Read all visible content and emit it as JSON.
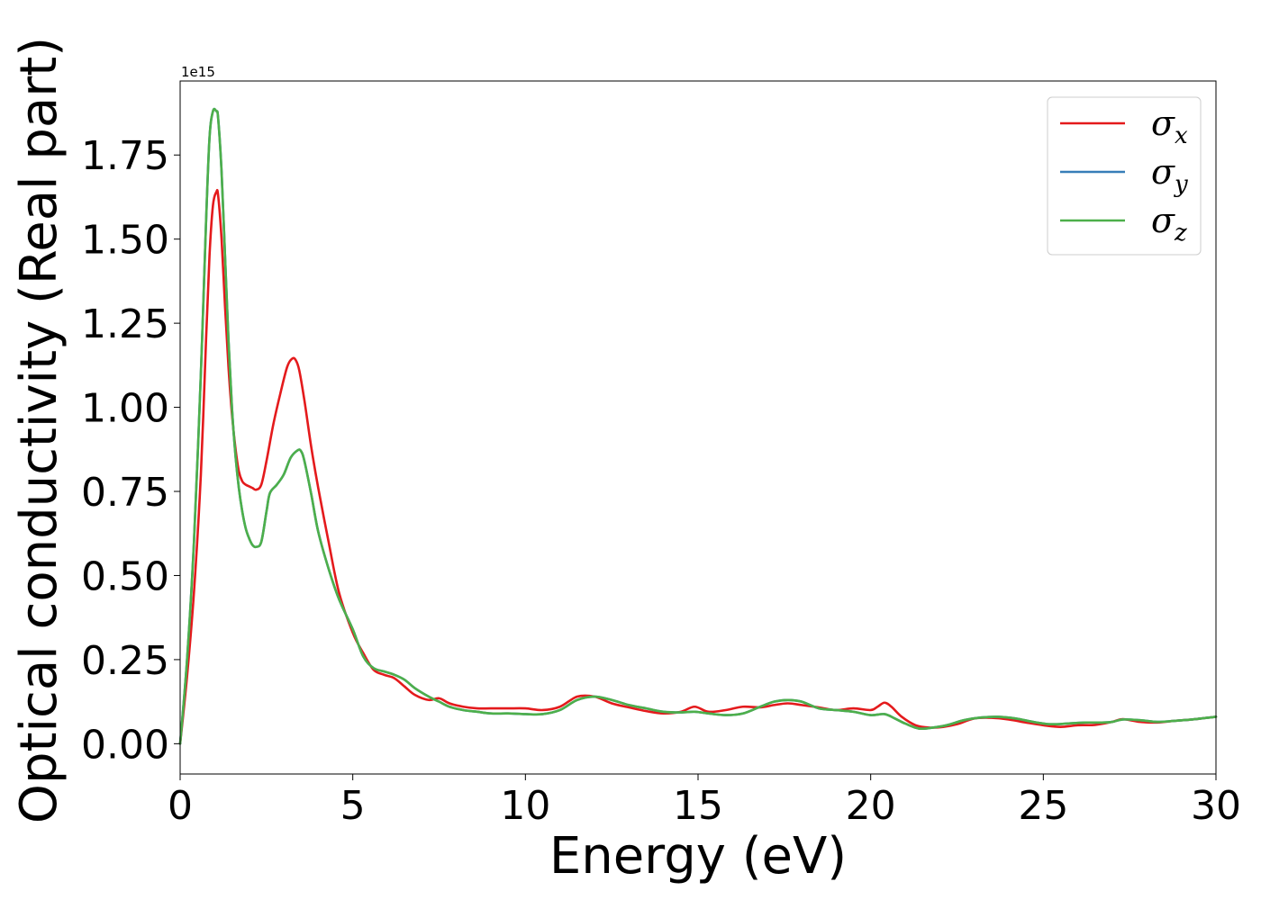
{
  "chart_data": {
    "type": "line",
    "title": "",
    "xlabel": "Energy (eV)",
    "ylabel": "Optical conductivity (Real part)",
    "y_offset_label": "1e15",
    "xlim": [
      0,
      30
    ],
    "ylim": [
      -0.09,
      1.97
    ],
    "xticks": [
      0,
      5,
      10,
      15,
      20,
      25,
      30
    ],
    "xtick_labels": [
      "0",
      "5",
      "10",
      "15",
      "20",
      "25",
      "30"
    ],
    "yticks": [
      0.0,
      0.25,
      0.5,
      0.75,
      1.0,
      1.25,
      1.5,
      1.75
    ],
    "ytick_labels": [
      "0.00",
      "0.25",
      "0.50",
      "0.75",
      "1.00",
      "1.25",
      "1.50",
      "1.75"
    ],
    "grid": false,
    "legend_position": "top-right",
    "series": [
      {
        "name": "σx",
        "legend_base": "σ",
        "legend_sub": "x",
        "color": "#e41a1c",
        "x": [
          0,
          0.2,
          0.4,
          0.6,
          0.75,
          0.85,
          0.95,
          1.05,
          1.1,
          1.2,
          1.3,
          1.4,
          1.5,
          1.6,
          1.7,
          1.8,
          1.9,
          2.0,
          2.1,
          2.2,
          2.35,
          2.5,
          2.7,
          2.9,
          3.1,
          3.25,
          3.35,
          3.45,
          3.6,
          3.8,
          4.0,
          4.3,
          4.6,
          5.0,
          5.3,
          5.6,
          5.9,
          6.2,
          6.5,
          6.8,
          7.2,
          7.5,
          7.8,
          8.2,
          8.6,
          9.0,
          9.5,
          10.0,
          10.5,
          11.0,
          11.5,
          12.0,
          12.5,
          13.0,
          13.5,
          14.0,
          14.5,
          14.9,
          15.3,
          15.8,
          16.3,
          16.8,
          17.2,
          17.6,
          18.0,
          18.5,
          19.0,
          19.5,
          20.0,
          20.2,
          20.4,
          20.6,
          20.9,
          21.3,
          21.7,
          22.1,
          22.5,
          23.0,
          23.5,
          24.0,
          24.5,
          25.0,
          25.5,
          26.0,
          26.5,
          27.0,
          27.3,
          27.8,
          28.3,
          28.8,
          29.3,
          30.0
        ],
        "y": [
          0.0,
          0.2,
          0.45,
          0.8,
          1.2,
          1.45,
          1.6,
          1.64,
          1.63,
          1.5,
          1.3,
          1.12,
          0.98,
          0.88,
          0.81,
          0.78,
          0.77,
          0.765,
          0.76,
          0.755,
          0.77,
          0.84,
          0.95,
          1.04,
          1.12,
          1.145,
          1.14,
          1.11,
          1.02,
          0.88,
          0.76,
          0.6,
          0.45,
          0.33,
          0.27,
          0.22,
          0.205,
          0.195,
          0.17,
          0.145,
          0.13,
          0.135,
          0.12,
          0.11,
          0.105,
          0.105,
          0.105,
          0.105,
          0.1,
          0.11,
          0.14,
          0.14,
          0.12,
          0.108,
          0.097,
          0.09,
          0.095,
          0.11,
          0.095,
          0.1,
          0.11,
          0.108,
          0.115,
          0.12,
          0.115,
          0.108,
          0.1,
          0.105,
          0.1,
          0.11,
          0.122,
          0.11,
          0.08,
          0.055,
          0.048,
          0.05,
          0.058,
          0.075,
          0.077,
          0.072,
          0.063,
          0.055,
          0.05,
          0.055,
          0.056,
          0.065,
          0.073,
          0.065,
          0.063,
          0.068,
          0.072,
          0.08
        ]
      },
      {
        "name": "σy",
        "legend_base": "σ",
        "legend_sub": "y",
        "color": "#377eb8",
        "x": [
          0,
          0.2,
          0.4,
          0.6,
          0.75,
          0.85,
          0.95,
          1.05,
          1.1,
          1.2,
          1.3,
          1.4,
          1.5,
          1.6,
          1.7,
          1.8,
          1.9,
          2.0,
          2.1,
          2.2,
          2.35,
          2.5,
          2.6,
          2.8,
          3.0,
          3.2,
          3.4,
          3.5,
          3.6,
          3.8,
          4.0,
          4.3,
          4.6,
          5.0,
          5.3,
          5.6,
          5.9,
          6.2,
          6.5,
          6.8,
          7.2,
          7.5,
          7.8,
          8.2,
          8.6,
          9.0,
          9.5,
          10.0,
          10.5,
          11.0,
          11.5,
          12.0,
          12.5,
          13.0,
          13.5,
          14.0,
          14.5,
          14.9,
          15.3,
          15.8,
          16.3,
          16.8,
          17.2,
          17.6,
          18.0,
          18.5,
          19.0,
          19.5,
          20.0,
          20.4,
          20.7,
          21.0,
          21.4,
          21.8,
          22.2,
          22.7,
          23.2,
          23.7,
          24.2,
          24.7,
          25.2,
          25.7,
          26.2,
          26.7,
          27.0,
          27.3,
          27.8,
          28.3,
          28.8,
          29.3,
          30.0
        ],
        "y": [
          0.0,
          0.25,
          0.6,
          1.1,
          1.55,
          1.8,
          1.88,
          1.88,
          1.86,
          1.7,
          1.45,
          1.2,
          1.0,
          0.86,
          0.76,
          0.69,
          0.64,
          0.61,
          0.59,
          0.585,
          0.6,
          0.69,
          0.745,
          0.77,
          0.8,
          0.85,
          0.872,
          0.87,
          0.84,
          0.74,
          0.63,
          0.52,
          0.43,
          0.34,
          0.26,
          0.225,
          0.215,
          0.205,
          0.19,
          0.165,
          0.14,
          0.125,
          0.11,
          0.1,
          0.095,
          0.09,
          0.09,
          0.088,
          0.088,
          0.1,
          0.13,
          0.14,
          0.13,
          0.115,
          0.105,
          0.095,
          0.093,
          0.095,
          0.09,
          0.085,
          0.09,
          0.11,
          0.125,
          0.13,
          0.125,
          0.105,
          0.1,
          0.095,
          0.085,
          0.088,
          0.075,
          0.06,
          0.045,
          0.048,
          0.055,
          0.07,
          0.078,
          0.08,
          0.075,
          0.065,
          0.058,
          0.06,
          0.063,
          0.063,
          0.065,
          0.072,
          0.07,
          0.065,
          0.068,
          0.072,
          0.08
        ]
      },
      {
        "name": "σz",
        "legend_base": "σ",
        "legend_sub": "z",
        "color": "#4daf4a",
        "x": [
          0,
          0.2,
          0.4,
          0.6,
          0.75,
          0.85,
          0.95,
          1.05,
          1.1,
          1.2,
          1.3,
          1.4,
          1.5,
          1.6,
          1.7,
          1.8,
          1.9,
          2.0,
          2.1,
          2.2,
          2.35,
          2.5,
          2.6,
          2.8,
          3.0,
          3.2,
          3.4,
          3.5,
          3.6,
          3.8,
          4.0,
          4.3,
          4.6,
          5.0,
          5.3,
          5.6,
          5.9,
          6.2,
          6.5,
          6.8,
          7.2,
          7.5,
          7.8,
          8.2,
          8.6,
          9.0,
          9.5,
          10.0,
          10.5,
          11.0,
          11.5,
          12.0,
          12.5,
          13.0,
          13.5,
          14.0,
          14.5,
          14.9,
          15.3,
          15.8,
          16.3,
          16.8,
          17.2,
          17.6,
          18.0,
          18.5,
          19.0,
          19.5,
          20.0,
          20.4,
          20.7,
          21.0,
          21.4,
          21.8,
          22.2,
          22.7,
          23.2,
          23.7,
          24.2,
          24.7,
          25.2,
          25.7,
          26.2,
          26.7,
          27.0,
          27.3,
          27.8,
          28.3,
          28.8,
          29.3,
          30.0
        ],
        "y": [
          0.0,
          0.25,
          0.6,
          1.1,
          1.55,
          1.8,
          1.88,
          1.88,
          1.86,
          1.7,
          1.45,
          1.2,
          1.0,
          0.86,
          0.76,
          0.69,
          0.64,
          0.61,
          0.59,
          0.585,
          0.6,
          0.69,
          0.745,
          0.77,
          0.8,
          0.85,
          0.872,
          0.87,
          0.84,
          0.74,
          0.63,
          0.52,
          0.43,
          0.34,
          0.26,
          0.225,
          0.215,
          0.205,
          0.19,
          0.165,
          0.14,
          0.125,
          0.11,
          0.1,
          0.095,
          0.09,
          0.09,
          0.088,
          0.088,
          0.1,
          0.13,
          0.14,
          0.13,
          0.115,
          0.105,
          0.095,
          0.093,
          0.095,
          0.09,
          0.085,
          0.09,
          0.11,
          0.125,
          0.13,
          0.125,
          0.105,
          0.1,
          0.095,
          0.085,
          0.088,
          0.075,
          0.06,
          0.045,
          0.048,
          0.055,
          0.07,
          0.078,
          0.08,
          0.075,
          0.065,
          0.058,
          0.06,
          0.063,
          0.063,
          0.065,
          0.072,
          0.07,
          0.065,
          0.068,
          0.072,
          0.08
        ]
      }
    ]
  }
}
